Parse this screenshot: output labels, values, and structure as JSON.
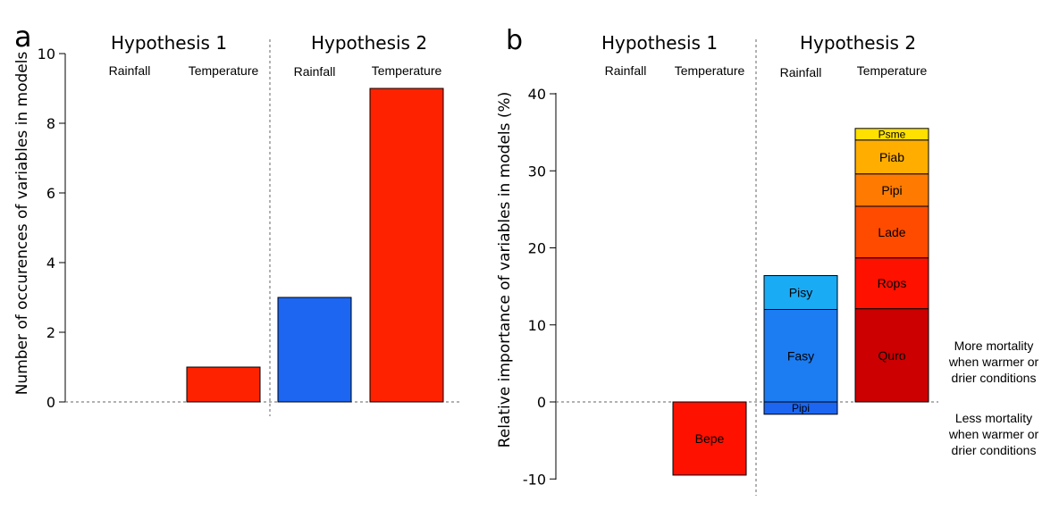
{
  "chart_data": [
    {
      "type": "bar",
      "panel_label": "a",
      "ylabel": "Number of occurences of variables in models",
      "ylim": [
        0,
        10
      ],
      "yticks": [
        0,
        2,
        4,
        6,
        8,
        10
      ],
      "groups": [
        "Hypothesis 1",
        "Hypothesis 2"
      ],
      "categories": [
        "Rainfall",
        "Temperature",
        "Rainfall",
        "Temperature"
      ],
      "values": [
        0,
        1,
        3,
        9
      ],
      "colors": [
        "#ff2200",
        "#ff2200",
        "#1c66f2",
        "#ff2200"
      ],
      "grid": false
    },
    {
      "type": "bar",
      "stacked": true,
      "panel_label": "b",
      "ylabel": "Relative importance of variables in models (%)",
      "ylim": [
        -10,
        40
      ],
      "yticks": [
        -10,
        0,
        10,
        20,
        30,
        40
      ],
      "groups": [
        "Hypothesis 1",
        "Hypothesis 2"
      ],
      "categories": [
        "Rainfall",
        "Temperature",
        "Rainfall",
        "Temperature"
      ],
      "bars": [
        {
          "category_index": 0,
          "segments": []
        },
        {
          "category_index": 1,
          "segments": [
            {
              "label": "Bepe",
              "from": -9.5,
              "to": 0,
              "color": "#ff1100"
            }
          ]
        },
        {
          "category_index": 2,
          "segments": [
            {
              "label": "Pipi",
              "from": -1.6,
              "to": 0,
              "color": "#1c66f2"
            },
            {
              "label": "Fasy",
              "from": 0,
              "to": 12,
              "color": "#1c7cf2"
            },
            {
              "label": "Pisy",
              "from": 12,
              "to": 16.4,
              "color": "#1aabf5"
            }
          ]
        },
        {
          "category_index": 3,
          "segments": [
            {
              "label": "Quro",
              "from": 0,
              "to": 12.1,
              "color": "#cc0000"
            },
            {
              "label": "Rops",
              "from": 12.1,
              "to": 18.7,
              "color": "#ff1100"
            },
            {
              "label": "Lade",
              "from": 18.7,
              "to": 25.4,
              "color": "#ff4b00"
            },
            {
              "label": "Pipi",
              "from": 25.4,
              "to": 29.6,
              "color": "#ff7a00"
            },
            {
              "label": "Piab",
              "from": 29.6,
              "to": 34,
              "color": "#ffae00"
            },
            {
              "label": "Psme",
              "from": 34,
              "to": 35.5,
              "color": "#ffe000"
            }
          ]
        }
      ],
      "annotations": [
        {
          "text": [
            "More mortality",
            "when warmer or",
            "drier conditions"
          ],
          "side": "above-zero"
        },
        {
          "text": [
            "Less mortality",
            "when warmer or",
            "drier conditions"
          ],
          "side": "below-zero"
        }
      ],
      "grid": false
    }
  ]
}
